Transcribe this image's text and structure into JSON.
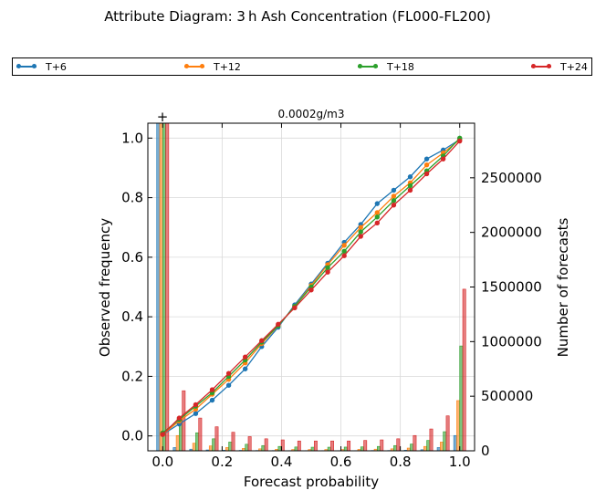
{
  "figure": {
    "title": "Attribute Diagram: 3 h Ash Concentration (FL000-FL200)",
    "subtitle": "0.0002g/m3",
    "xlabel": "Forecast probability",
    "ylabel_left": "Observed frequency",
    "ylabel_right": "Number of forecasts",
    "corner_marker": "+",
    "legend": [
      {
        "label": "T+6",
        "color": "#1f77b4"
      },
      {
        "label": "T+12",
        "color": "#ff7f0e"
      },
      {
        "label": "T+18",
        "color": "#2ca02c"
      },
      {
        "label": "T+24",
        "color": "#d62728"
      }
    ]
  },
  "chart_data": {
    "type": "line",
    "title": "Attribute Diagram: 3 h Ash Concentration (FL000-FL200)",
    "subtitle": "0.0002g/m3",
    "xlabel": "Forecast probability",
    "ylabel": "Observed frequency",
    "y2label": "Number of forecasts",
    "xlim": [
      -0.05,
      1.05
    ],
    "ylim": [
      -0.05,
      1.05
    ],
    "y2lim": [
      0,
      3000000
    ],
    "xticks": [
      "0.0",
      "0.2",
      "0.4",
      "0.6",
      "0.8",
      "1.0"
    ],
    "yticks": [
      "0.0",
      "0.2",
      "0.4",
      "0.6",
      "0.8",
      "1.0"
    ],
    "y2ticks": [
      "0",
      "500000",
      "1000000",
      "1500000",
      "2000000",
      "2500000"
    ],
    "grid": true,
    "legend_position": "top",
    "x": [
      0.0,
      0.0556,
      0.1111,
      0.1667,
      0.2222,
      0.2778,
      0.3333,
      0.3889,
      0.4444,
      0.5,
      0.5556,
      0.6111,
      0.6667,
      0.7222,
      0.7778,
      0.8333,
      0.8889,
      0.9444,
      1.0
    ],
    "series": [
      {
        "name": "T+6",
        "color": "#1f77b4",
        "values": [
          0.005,
          0.04,
          0.075,
          0.12,
          0.17,
          0.225,
          0.3,
          0.365,
          0.44,
          0.51,
          0.58,
          0.65,
          0.71,
          0.78,
          0.825,
          0.87,
          0.93,
          0.96,
          0.995
        ],
        "counts": [
          3000000,
          30000,
          15000,
          8000,
          5000,
          4000,
          3000,
          2500,
          2000,
          2000,
          2000,
          2000,
          2000,
          3000,
          3000,
          5000,
          10000,
          30000,
          140000
        ]
      },
      {
        "name": "T+12",
        "color": "#ff7f0e",
        "values": [
          0.005,
          0.05,
          0.09,
          0.14,
          0.19,
          0.245,
          0.31,
          0.37,
          0.435,
          0.505,
          0.575,
          0.64,
          0.7,
          0.75,
          0.805,
          0.85,
          0.91,
          0.95,
          0.995
        ],
        "counts": [
          3000000,
          140000,
          70000,
          45000,
          30000,
          22000,
          18000,
          14000,
          12000,
          12000,
          12000,
          12000,
          13000,
          15000,
          18000,
          25000,
          40000,
          80000,
          460000
        ]
      },
      {
        "name": "T+18",
        "color": "#2ca02c",
        "values": [
          0.01,
          0.055,
          0.1,
          0.145,
          0.2,
          0.255,
          0.315,
          0.37,
          0.435,
          0.5,
          0.565,
          0.62,
          0.685,
          0.735,
          0.79,
          0.84,
          0.89,
          0.94,
          1.0
        ],
        "counts": [
          3000000,
          280000,
          165000,
          110000,
          80000,
          60000,
          48000,
          40000,
          35000,
          33000,
          33000,
          34000,
          36000,
          40000,
          48000,
          62000,
          95000,
          175000,
          960000
        ]
      },
      {
        "name": "T+24",
        "color": "#d62728",
        "values": [
          0.005,
          0.06,
          0.105,
          0.155,
          0.21,
          0.265,
          0.32,
          0.375,
          0.43,
          0.49,
          0.55,
          0.605,
          0.67,
          0.715,
          0.775,
          0.825,
          0.88,
          0.93,
          0.99
        ],
        "counts": [
          3000000,
          550000,
          300000,
          220000,
          170000,
          130000,
          110000,
          100000,
          90000,
          90000,
          90000,
          90000,
          95000,
          100000,
          110000,
          140000,
          200000,
          320000,
          1480000
        ]
      }
    ]
  }
}
